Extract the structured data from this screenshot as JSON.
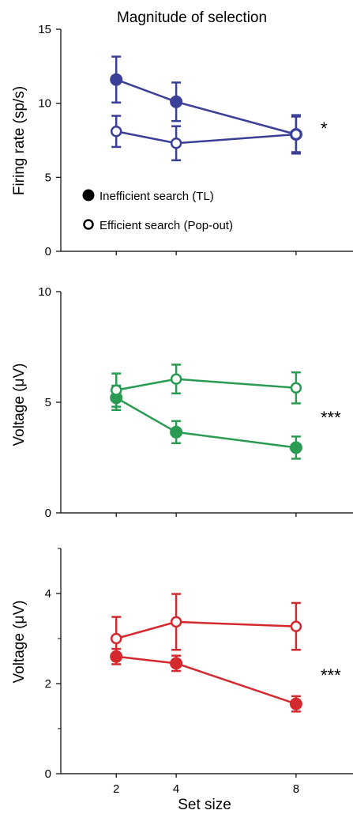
{
  "chart_data": [
    {
      "type": "line",
      "title": "Magnitude of selection",
      "ylabel": "Firing rate (sp/s)",
      "xlabel": "",
      "x": [
        2,
        4,
        8
      ],
      "xlim": [
        0.15,
        9.9
      ],
      "ylim": [
        0,
        15
      ],
      "yticks": [
        0,
        5,
        10,
        15
      ],
      "yminor": [],
      "xticks": [],
      "grid": false,
      "color": "#3a3f98",
      "significance": "*",
      "legend": [
        {
          "label": "Inefficient search (TL)",
          "marker": "filled"
        },
        {
          "label": "Efficient search (Pop-out)",
          "marker": "open"
        }
      ],
      "series": [
        {
          "name": "Inefficient search (TL)",
          "marker": "filled",
          "values": [
            11.6,
            10.1,
            7.9
          ],
          "errors": [
            1.55,
            1.3,
            1.3
          ]
        },
        {
          "name": "Efficient search (Pop-out)",
          "marker": "open",
          "values": [
            8.1,
            7.3,
            7.9
          ],
          "errors": [
            1.05,
            1.15,
            1.2
          ]
        }
      ]
    },
    {
      "type": "line",
      "title": "",
      "ylabel": "Voltage (μV)",
      "xlabel": "",
      "x": [
        2,
        4,
        8
      ],
      "xlim": [
        0.15,
        9.9
      ],
      "ylim": [
        0,
        10
      ],
      "yticks": [
        0,
        5,
        10
      ],
      "yminor": [],
      "xticks": [],
      "grid": false,
      "color": "#2a9b52",
      "significance": "***",
      "series": [
        {
          "name": "",
          "marker": "filled",
          "values": [
            5.2,
            3.65,
            2.95
          ],
          "errors": [
            0.55,
            0.5,
            0.5
          ]
        },
        {
          "name": "",
          "marker": "open",
          "values": [
            5.55,
            6.05,
            5.65
          ],
          "errors": [
            0.75,
            0.65,
            0.7
          ]
        }
      ]
    },
    {
      "type": "line",
      "title": "",
      "ylabel": "Voltage (μV)",
      "xlabel": "Set size",
      "x": [
        2,
        4,
        8
      ],
      "xlim": [
        0.15,
        9.9
      ],
      "ylim": [
        0,
        5
      ],
      "yticks": [
        0,
        2,
        4
      ],
      "yminor": [
        1,
        3,
        5
      ],
      "xticks": [
        "2",
        "4",
        "8"
      ],
      "grid": false,
      "color": "#d42a2f",
      "significance": "***",
      "series": [
        {
          "name": "",
          "marker": "filled",
          "values": [
            2.6,
            2.45,
            1.55
          ],
          "errors": [
            0.17,
            0.17,
            0.17
          ]
        },
        {
          "name": "",
          "marker": "open",
          "values": [
            3.0,
            3.37,
            3.27
          ],
          "errors": [
            0.48,
            0.62,
            0.52
          ]
        }
      ]
    }
  ]
}
